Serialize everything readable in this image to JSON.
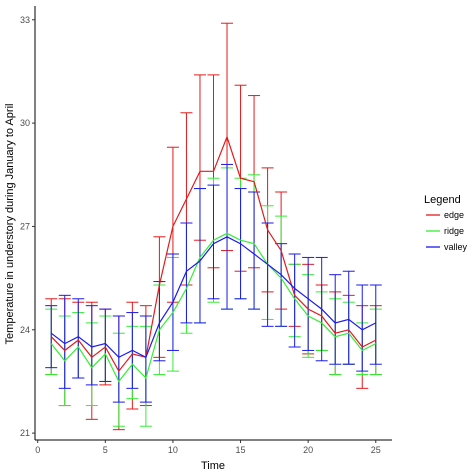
{
  "chart_data": {
    "type": "line",
    "xlabel": "Time",
    "ylabel": "Temperature in understory during January to April",
    "xlim": [
      -0.2,
      26.2
    ],
    "ylim": [
      20.8,
      33.4
    ],
    "x_ticks": [
      0,
      5,
      10,
      15,
      20,
      25
    ],
    "x_tick_labels": [
      "0",
      "5",
      "10",
      "15",
      "20",
      "25"
    ],
    "y_ticks": [
      21,
      24,
      27,
      30,
      33
    ],
    "y_tick_labels": [
      "21",
      "24",
      "27",
      "30",
      "33"
    ],
    "grid": false,
    "legend": {
      "title": "Legend",
      "position": "right"
    },
    "x": [
      1,
      2,
      3,
      4,
      5,
      6,
      7,
      8,
      9,
      10,
      11,
      12,
      13,
      14,
      15,
      16,
      17,
      18,
      19,
      20,
      21,
      22,
      23,
      24,
      25
    ],
    "series": [
      {
        "name": "edge",
        "color": "#e41a1c",
        "values": [
          23.8,
          23.4,
          23.7,
          23.2,
          23.5,
          22.8,
          23.3,
          23.2,
          25.3,
          27.0,
          27.8,
          28.6,
          28.6,
          29.6,
          28.4,
          28.3,
          26.9,
          26.3,
          25.0,
          24.6,
          24.4,
          23.9,
          24.0,
          23.5,
          23.7
        ],
        "err_low": [
          22.7,
          21.8,
          22.6,
          21.4,
          22.4,
          21.1,
          21.7,
          21.8,
          23.2,
          24.8,
          25.3,
          26.6,
          25.8,
          26.3,
          25.7,
          25.8,
          25.1,
          24.6,
          24.1,
          23.3,
          23.4,
          22.7,
          23.0,
          22.3,
          22.7
        ],
        "err_high": [
          24.9,
          24.9,
          24.8,
          24.8,
          24.6,
          24.4,
          24.8,
          24.7,
          26.7,
          29.3,
          30.3,
          31.4,
          31.4,
          32.9,
          31.1,
          30.8,
          28.7,
          28.0,
          25.9,
          25.9,
          25.3,
          25.1,
          25.0,
          24.7,
          24.7
        ]
      },
      {
        "name": "ridge",
        "color": "#33ee33",
        "values": [
          23.6,
          23.1,
          23.5,
          22.9,
          23.3,
          22.5,
          23.0,
          22.6,
          24.0,
          24.5,
          25.2,
          26.1,
          26.6,
          26.8,
          26.6,
          26.5,
          25.9,
          25.5,
          24.9,
          24.4,
          24.2,
          23.8,
          23.9,
          23.4,
          23.6
        ],
        "err_low": [
          22.7,
          21.8,
          22.6,
          21.8,
          22.5,
          21.2,
          22.0,
          21.2,
          22.7,
          22.8,
          23.9,
          24.2,
          24.8,
          24.6,
          24.9,
          24.6,
          24.3,
          24.1,
          23.8,
          23.2,
          23.4,
          22.7,
          23.0,
          22.7,
          22.7
        ],
        "err_high": [
          24.6,
          24.4,
          24.5,
          24.2,
          24.4,
          23.9,
          24.1,
          24.1,
          25.3,
          26.1,
          27.1,
          28.1,
          28.4,
          28.7,
          28.4,
          28.5,
          27.6,
          27.3,
          25.9,
          25.6,
          25.1,
          24.9,
          24.8,
          24.2,
          24.6
        ]
      },
      {
        "name": "valley",
        "color": "#1a1aee",
        "values": [
          23.9,
          23.6,
          23.8,
          23.5,
          23.6,
          23.2,
          23.4,
          23.2,
          24.2,
          24.8,
          25.7,
          26.0,
          26.5,
          26.7,
          26.5,
          26.2,
          25.9,
          25.6,
          25.2,
          24.9,
          24.6,
          24.2,
          24.3,
          24.0,
          24.2
        ],
        "err_low": [
          22.9,
          22.3,
          22.6,
          22.4,
          22.5,
          21.9,
          22.3,
          21.9,
          23.1,
          23.4,
          24.2,
          24.2,
          24.9,
          24.6,
          24.9,
          24.6,
          24.1,
          24.1,
          23.5,
          23.4,
          23.1,
          23.0,
          23.0,
          22.8,
          23.0
        ],
        "err_high": [
          24.7,
          25.0,
          24.9,
          24.7,
          24.6,
          24.4,
          24.5,
          24.4,
          25.4,
          26.2,
          27.1,
          28.1,
          28.2,
          28.8,
          28.1,
          28.0,
          27.1,
          26.5,
          26.2,
          26.1,
          26.1,
          25.6,
          25.7,
          25.3,
          25.3
        ]
      }
    ]
  }
}
